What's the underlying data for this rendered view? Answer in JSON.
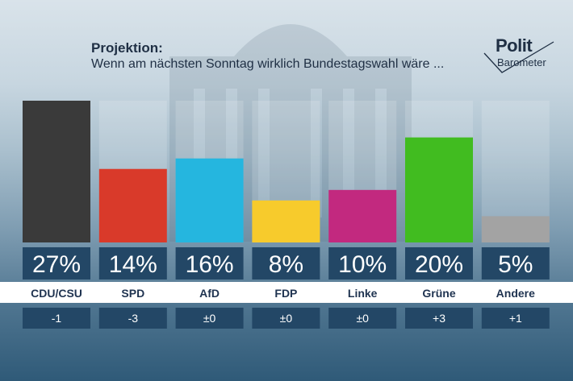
{
  "header": {
    "title": "Projektion:",
    "subtitle": "Wenn am nächsten Sonntag wirklich Bundestagswahl wäre ..."
  },
  "logo": {
    "line1": "Polit",
    "line2": "Barometer"
  },
  "chart_data": {
    "type": "bar",
    "title": "Projektion:",
    "subtitle": "Wenn am nächsten Sonntag wirklich Bundestagswahl wäre ...",
    "categories": [
      "CDU/CSU",
      "SPD",
      "AfD",
      "FDP",
      "Linke",
      "Grüne",
      "Andere"
    ],
    "values": [
      27,
      14,
      16,
      8,
      10,
      20,
      5
    ],
    "value_labels": [
      "27%",
      "14%",
      "16%",
      "8%",
      "10%",
      "20%",
      "5%"
    ],
    "changes": [
      "-1",
      "-3",
      "±0",
      "±0",
      "±0",
      "+3",
      "+1"
    ],
    "colors": [
      "#3a3a3a",
      "#d93a2a",
      "#25b6df",
      "#f7cb2c",
      "#c2297f",
      "#41bc20",
      "#a3a3a3"
    ],
    "ylim": [
      0,
      27
    ],
    "grid": false,
    "legend": "none"
  }
}
